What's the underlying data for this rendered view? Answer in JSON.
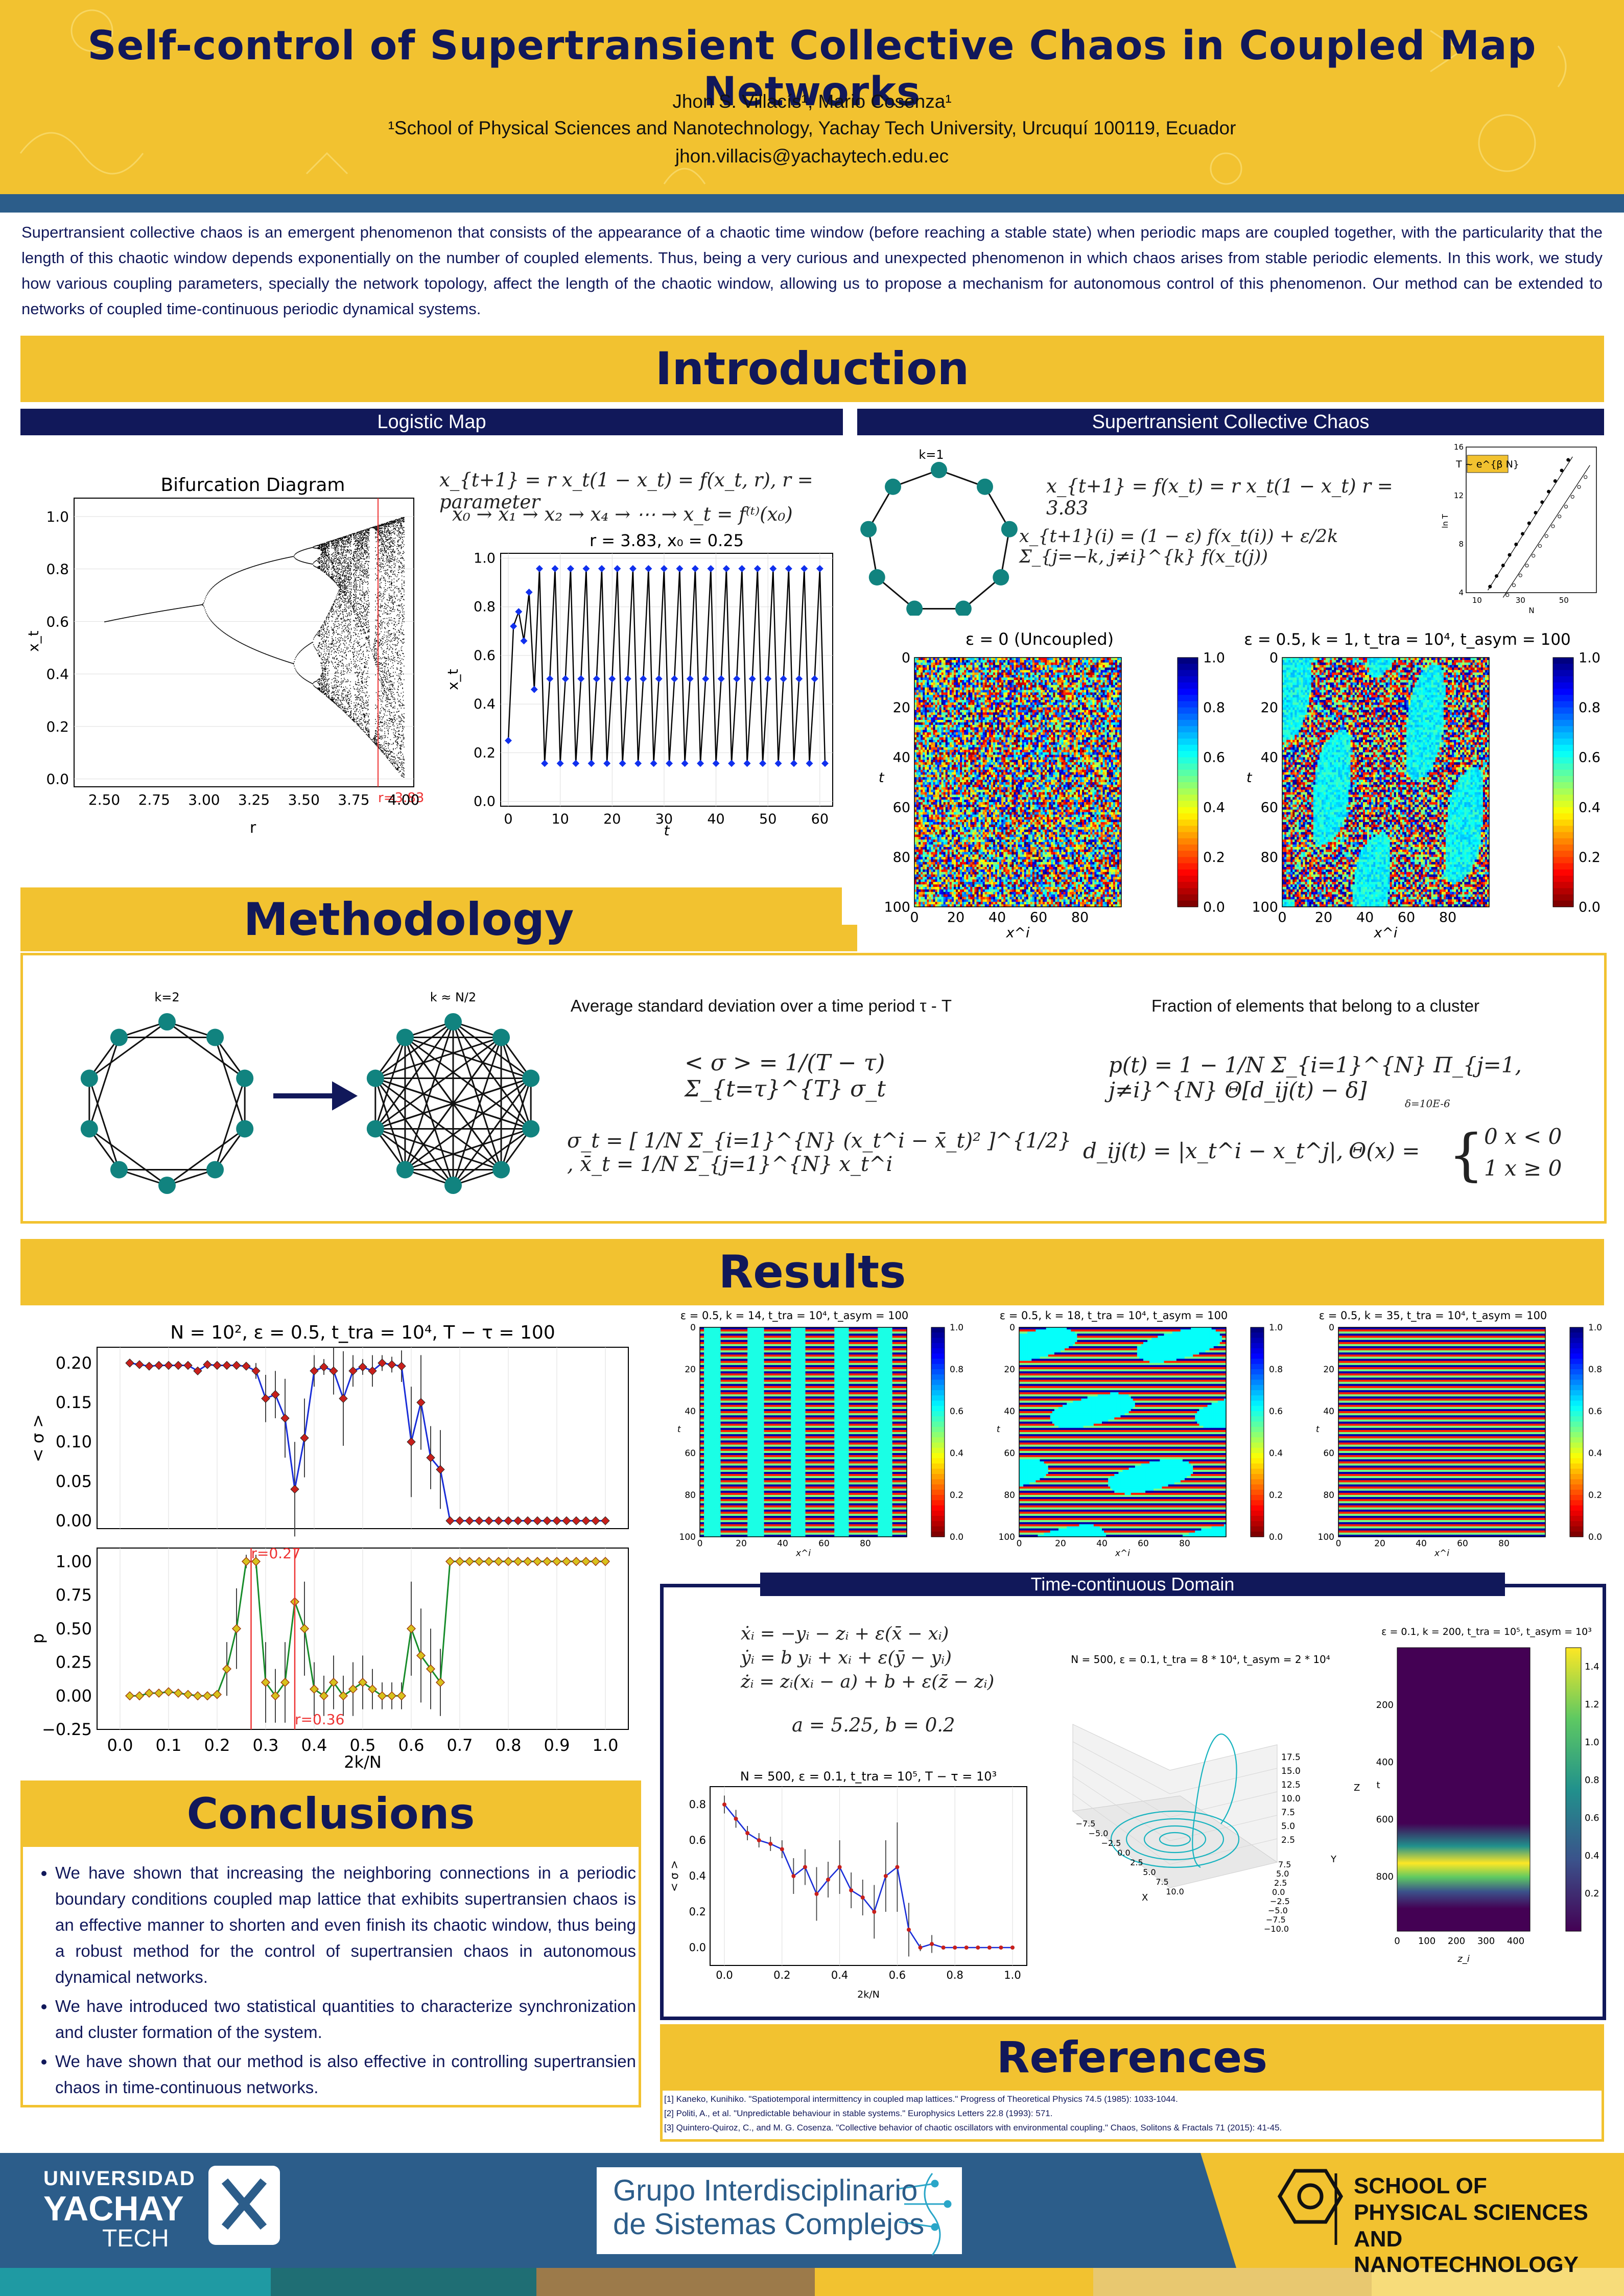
{
  "header": {
    "title": "Self-control of Supertransient Collective Chaos in Coupled Map Networks",
    "authors": "Jhon S. Villacís¹, Mario Cosenza¹",
    "affiliation": "¹School of Physical Sciences and Nanotechnology, Yachay Tech University, Urcuquí 100119, Ecuador",
    "email": "jhon.villacis@yachaytech.edu.ec"
  },
  "abstract": "Supertransient collective chaos is an emergent phenomenon that consists of the appearance of a chaotic time window (before reaching a stable state) when periodic maps are coupled together, with the particularity that the length of this chaotic window depends exponentially on the number of coupled elements. Thus, being a very curious and unexpected phenomenon in which chaos arises from stable periodic elements. In this work, we study how various coupling parameters, specially the network topology, affect the length of the chaotic window, allowing us to propose a mechanism for autonomous control of this phenomenon. Our method can be extended to networks of coupled time-continuous periodic dynamical systems.",
  "introduction": {
    "title": "Introduction",
    "logistic_label": "Logistic Map",
    "stcc_label": "Supertransient Collective Chaos",
    "bif_title": "Bifurcation Diagram",
    "bif_xlabel": "r",
    "bif_ylabel": "x_t",
    "bif_marker": "r=3.83",
    "bif_xticks": [
      "2.50",
      "2.75",
      "3.00",
      "3.25",
      "3.50",
      "3.75",
      "4.00"
    ],
    "bif_yticks": [
      "0.0",
      "0.2",
      "0.4",
      "0.6",
      "0.8",
      "1.0"
    ],
    "eq_map": "x_{t+1} = r x_t(1 − x_t) = f(x_t, r),     r = parameter",
    "eq_orbit": "x₀ → x₁ → x₂ → x₄ → ⋯ → x_t = f⁽ᵗ⁾(x₀)",
    "ts_title": "r = 3.83, x₀ = 0.25",
    "ts_xlabel": "t",
    "ts_ylabel": "x_t",
    "ts_xticks": [
      "0",
      "10",
      "20",
      "30",
      "40",
      "50",
      "60"
    ],
    "ts_yticks": [
      "0.0",
      "0.2",
      "0.4",
      "0.6",
      "0.8",
      "1.0"
    ],
    "ring_label": "k=1",
    "eq_stcc_1": "x_{t+1} = f(x_t) = r x_t(1 − x_t)        r = 3.83",
    "eq_stcc_2": "x_{t+1}(i) = (1 − ε) f(x_t(i)) + ε/2k Σ_{j=−k, j≠i}^{k} f(x_t(j))",
    "inset_label": "T ~ e^{β N}",
    "inset_ylabel": "ln T",
    "inset_xlabel": "N",
    "inset_xticks": [
      "10",
      "30",
      "50"
    ],
    "inset_yticks": [
      "4",
      "8",
      "12",
      "16"
    ],
    "st1_title": "ε = 0 (Uncoupled)",
    "st2_title": "ε = 0.5, k = 1, t_tra = 10⁴, t_asym = 100",
    "st_xlabel": "x^i",
    "st_ylabel": "t",
    "st_xticks": [
      "0",
      "20",
      "40",
      "60",
      "80"
    ],
    "st_yticks": [
      "0",
      "20",
      "40",
      "60",
      "80",
      "100"
    ],
    "cbar_ticks": [
      "0.0",
      "0.2",
      "0.4",
      "0.6",
      "0.8",
      "1.0"
    ]
  },
  "methodology": {
    "title": "Methodology",
    "k2_label": "k=2",
    "kN_label": "k ≈ N/2",
    "sigma_title": "Average standard deviation over a time period τ - T",
    "frac_title": "Fraction of elements that belong to a cluster",
    "eq_avg_sigma": "< σ > = 1/(T − τ) Σ_{t=τ}^{T} σ_t",
    "eq_sigma": "σ_t = [ 1/N Σ_{i=1}^{N} (x_t^i − x̄_t)² ]^{1/2} ,     x̄_t = 1/N Σ_{j=1}^{N} x_t^i",
    "eq_p": "p(t) = 1 − 1/N Σ_{i=1}^{N} Π_{j=1, j≠i}^{N} Θ[d_ij(t) − δ]",
    "delta_note": "δ=10E-6",
    "eq_d": "d_ij(t) = |x_t^i − x_t^j|,",
    "eq_theta_lhs": "Θ(x) =",
    "eq_theta_1": "0    x < 0",
    "eq_theta_2": "1    x ≥ 0"
  },
  "results": {
    "title": "Results",
    "sigma_title": "N = 10², ε = 0.5, t_tra = 10⁴, T − τ = 100",
    "sigma_ylabel": "< σ >",
    "p_ylabel": "p",
    "xlabel": "2k/N",
    "sigma_yticks": [
      "0.00",
      "0.05",
      "0.10",
      "0.15",
      "0.20"
    ],
    "p_yticks": [
      "−0.25",
      "0.00",
      "0.25",
      "0.50",
      "0.75",
      "1.00"
    ],
    "xticks": [
      "0.0",
      "0.1",
      "0.2",
      "0.3",
      "0.4",
      "0.5",
      "0.6",
      "0.7",
      "0.8",
      "0.9",
      "1.0"
    ],
    "marker_1": "r=0.27",
    "marker_2": "r=0.36",
    "st_a_title": "ε = 0.5, k = 14, t_tra = 10⁴, t_asym = 100",
    "st_b_title": "ε = 0.5, k = 18, t_tra = 10⁴, t_asym = 100",
    "st_c_title": "ε = 0.5, k = 35, t_tra = 10⁴, t_asym = 100"
  },
  "time_continuous": {
    "label": "Time-continuous Domain",
    "eq1": "ẋᵢ = −yᵢ − zᵢ + ε(x̄ − xᵢ)",
    "eq2": "ẏᵢ = b yᵢ + xᵢ + ε(ȳ − yᵢ)",
    "eq3": "żᵢ = zᵢ(xᵢ − a) + b + ε(z̄ − zᵢ)",
    "params": "a = 5.25, b = 0.2",
    "plot_title": "N = 500, ε = 0.1, t_tra = 10⁵, T − τ = 10³",
    "plot_ylabel": "< σ >",
    "plot_xlabel": "2k/N",
    "plot_xticks": [
      "0.0",
      "0.2",
      "0.4",
      "0.6",
      "0.8",
      "1.0"
    ],
    "plot_yticks": [
      "0.0",
      "0.2",
      "0.4",
      "0.6",
      "0.8"
    ],
    "rossler_title": "N = 500, ε = 0.1, t_tra = 8 * 10⁴,  t_asym = 2 * 10⁴",
    "rossler_xlabel": "X",
    "rossler_ylabel": "Y",
    "rossler_zlabel": "Z",
    "rossler_xticks": [
      "−7.5",
      "−5.0",
      "−2.5",
      "0.0",
      "2.5",
      "5.0",
      "7.5",
      "10.0"
    ],
    "rossler_yticks": [
      "7.5",
      "5.0",
      "2.5",
      "0.0",
      "−2.5",
      "−5.0",
      "−7.5",
      "−10.0"
    ],
    "rossler_zticks": [
      "17.5",
      "15.0",
      "12.5",
      "10.0",
      "7.5",
      "5.0",
      "2.5"
    ],
    "heat_title": "ε = 0.1, k = 200, t_tra = 10⁵, t_asym = 10³",
    "heat_xlabel": "z_i",
    "heat_ylabel": "t",
    "heat_xticks": [
      "0",
      "100",
      "200",
      "300",
      "400"
    ],
    "heat_yticks": [
      "200",
      "400",
      "600",
      "800"
    ],
    "heat_cbar": [
      "0.2",
      "0.4",
      "0.6",
      "0.8",
      "1.0",
      "1.2",
      "1.4"
    ]
  },
  "conclusions": {
    "title": "Conclusions",
    "items": [
      "We have shown that increasing the neighboring connections in a periodic boundary conditions coupled map lattice that exhibits supertransien chaos is an effective manner to shorten and even finish its chaotic window, thus being a robust method for the control of supertransien chaos in autonomous dynamical networks.",
      "We have introduced two statistical quantities to characterize synchronization and cluster formation of the system.",
      "We have shown that our method is also effective in controlling supertransien chaos in time-continuous networks."
    ]
  },
  "references": {
    "title": "References",
    "items": [
      "[1] Kaneko, Kunihiko. \"Spatiotemporal intermittency in coupled map lattices.\" Progress of Theoretical Physics 74.5 (1985): 1033-1044.",
      "[2] Politi, A., et al. \"Unpredictable behaviour in stable systems.\" Europhysics Letters 22.8 (1993): 571.",
      "[3] Quintero-Quiroz, C., and M. G. Cosenza. \"Collective behavior of chaotic oscillators with environmental coupling.\" Chaos, Solitons & Fractals 71 (2015): 41-45."
    ]
  },
  "footer": {
    "uni_1": "UNIVERSIDAD",
    "uni_2": "YACHAY",
    "uni_3": "TECH",
    "group_1": "Grupo Interdisciplinario",
    "group_2": "de Sistemas Complejos",
    "school_1": "SCHOOL OF",
    "school_2": "PHYSICAL SCIENCES",
    "school_3": "AND NANOTECHNOLOGY"
  },
  "colors": {
    "navy": "#11185a",
    "gold": "#f2c230",
    "blue": "#2c5d8a"
  },
  "chart_data": [
    {
      "type": "line",
      "title": "N = 10², ε = 0.5, t_tra = 10⁴, T − τ = 100",
      "xlabel": "2k/N",
      "ylabel": "< σ >",
      "ylim": [
        -0.01,
        0.22
      ],
      "x": [
        0.02,
        0.04,
        0.06,
        0.08,
        0.1,
        0.12,
        0.14,
        0.16,
        0.18,
        0.2,
        0.22,
        0.24,
        0.26,
        0.28,
        0.3,
        0.32,
        0.34,
        0.36,
        0.38,
        0.4,
        0.42,
        0.44,
        0.46,
        0.48,
        0.5,
        0.52,
        0.54,
        0.56,
        0.58,
        0.6,
        0.62,
        0.64,
        0.66,
        0.68,
        0.7,
        0.72,
        0.74,
        0.76,
        0.78,
        0.8,
        0.82,
        0.84,
        0.86,
        0.88,
        0.9,
        0.92,
        0.94,
        0.96,
        0.98,
        1.0
      ],
      "values": [
        0.2,
        0.198,
        0.196,
        0.197,
        0.197,
        0.197,
        0.197,
        0.19,
        0.198,
        0.197,
        0.197,
        0.197,
        0.196,
        0.19,
        0.155,
        0.16,
        0.13,
        0.04,
        0.105,
        0.19,
        0.195,
        0.19,
        0.155,
        0.19,
        0.195,
        0.19,
        0.2,
        0.198,
        0.196,
        0.1,
        0.15,
        0.08,
        0.065,
        0.0,
        0,
        0,
        0,
        0,
        0,
        0,
        0,
        0,
        0,
        0,
        0,
        0,
        0,
        0,
        0,
        0
      ],
      "errors": [
        0.004,
        0.003,
        0.003,
        0.003,
        0.003,
        0.003,
        0.003,
        0.005,
        0.003,
        0.003,
        0.003,
        0.003,
        0.003,
        0.01,
        0.03,
        0.03,
        0.05,
        0.06,
        0.05,
        0.02,
        0.01,
        0.03,
        0.06,
        0.02,
        0.01,
        0.02,
        0.01,
        0.01,
        0.02,
        0.07,
        0.06,
        0.04,
        0.05,
        0.0,
        0,
        0,
        0,
        0,
        0,
        0,
        0,
        0,
        0,
        0,
        0,
        0,
        0,
        0,
        0,
        0
      ]
    },
    {
      "type": "line",
      "xlabel": "2k/N",
      "ylabel": "p",
      "ylim": [
        -0.25,
        1.1
      ],
      "x": [
        0.02,
        0.04,
        0.06,
        0.08,
        0.1,
        0.12,
        0.14,
        0.16,
        0.18,
        0.2,
        0.22,
        0.24,
        0.26,
        0.28,
        0.3,
        0.32,
        0.34,
        0.36,
        0.38,
        0.4,
        0.42,
        0.44,
        0.46,
        0.48,
        0.5,
        0.52,
        0.54,
        0.56,
        0.58,
        0.6,
        0.62,
        0.64,
        0.66,
        0.68,
        0.7,
        0.72,
        0.74,
        0.76,
        0.78,
        0.8,
        0.82,
        0.84,
        0.86,
        0.88,
        0.9,
        0.92,
        0.94,
        0.96,
        0.98,
        1.0
      ],
      "values": [
        0.0,
        0.0,
        0.02,
        0.02,
        0.03,
        0.02,
        0.01,
        0.0,
        0.0,
        0.01,
        0.2,
        0.5,
        1.0,
        1.0,
        0.1,
        0.0,
        0.1,
        0.7,
        0.5,
        0.05,
        0.0,
        0.1,
        0.0,
        0.05,
        0.1,
        0.05,
        0.0,
        0.0,
        0.0,
        0.5,
        0.3,
        0.2,
        0.1,
        1.0,
        1,
        1,
        1,
        1,
        1,
        1,
        1,
        1,
        1,
        1,
        1,
        1,
        1,
        1,
        1,
        1
      ],
      "errors": [
        0.02,
        0.02,
        0.03,
        0.03,
        0.03,
        0.03,
        0.02,
        0.02,
        0.02,
        0.03,
        0.2,
        0.3,
        0.05,
        0.05,
        0.3,
        0.2,
        0.3,
        0.35,
        0.35,
        0.2,
        0.15,
        0.2,
        0.15,
        0.2,
        0.2,
        0.15,
        0.1,
        0.1,
        0.1,
        0.35,
        0.35,
        0.3,
        0.25,
        0.0,
        0,
        0,
        0,
        0,
        0,
        0,
        0,
        0,
        0,
        0,
        0,
        0,
        0,
        0,
        0,
        0
      ],
      "annotations": [
        "r=0.27",
        "r=0.36"
      ]
    },
    {
      "type": "line",
      "title": "N = 500, ε = 0.1, t_tra = 10⁵, T − τ = 10³",
      "xlabel": "2k/N",
      "ylabel": "< σ >",
      "ylim": [
        -0.1,
        0.9
      ],
      "x": [
        0.0,
        0.04,
        0.08,
        0.12,
        0.16,
        0.2,
        0.24,
        0.28,
        0.32,
        0.36,
        0.4,
        0.44,
        0.48,
        0.52,
        0.56,
        0.6,
        0.64,
        0.68,
        0.72,
        0.76,
        0.8,
        0.84,
        0.88,
        0.92,
        0.96,
        1.0
      ],
      "values": [
        0.8,
        0.72,
        0.64,
        0.6,
        0.58,
        0.55,
        0.4,
        0.45,
        0.3,
        0.38,
        0.45,
        0.32,
        0.28,
        0.2,
        0.4,
        0.45,
        0.1,
        0.0,
        0.02,
        0.0,
        0,
        0,
        0,
        0,
        0,
        0
      ],
      "errors": [
        0.05,
        0.05,
        0.04,
        0.04,
        0.04,
        0.05,
        0.1,
        0.1,
        0.15,
        0.1,
        0.15,
        0.1,
        0.1,
        0.15,
        0.2,
        0.25,
        0.15,
        0.02,
        0.05,
        0.01,
        0,
        0,
        0,
        0,
        0,
        0
      ]
    },
    {
      "type": "line",
      "title": "r = 3.83, x₀ = 0.25",
      "xlabel": "t",
      "ylabel": "x_t",
      "ylim": [
        0,
        1
      ],
      "x_range": [
        0,
        61
      ],
      "periodic_cycle": [
        0.156,
        0.504,
        0.957
      ],
      "initial": [
        0.25,
        0.72,
        0.78,
        0.66,
        0.86,
        0.46
      ]
    }
  ]
}
